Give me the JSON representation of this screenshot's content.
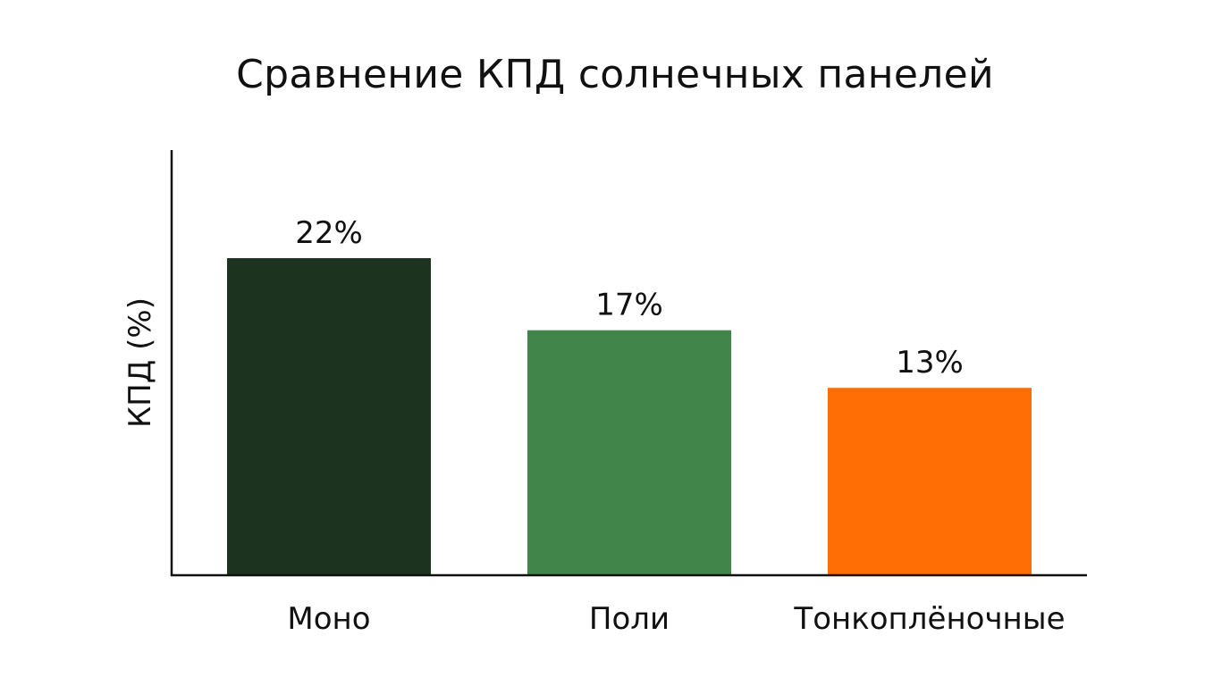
{
  "chart_data": {
    "type": "bar",
    "title": "Сравнение КПД солнечных панелей",
    "xlabel": "",
    "ylabel": "КПД (%)",
    "categories": [
      "Моно",
      "Поли",
      "Тонкоплёночные"
    ],
    "values": [
      22,
      17,
      13
    ],
    "value_labels": [
      "22%",
      "17%",
      "13%"
    ],
    "colors": [
      "#1c3320",
      "#42854a",
      "#ff6d05"
    ],
    "ylim": [
      0,
      29.5
    ],
    "grid": false,
    "legend": "none"
  }
}
